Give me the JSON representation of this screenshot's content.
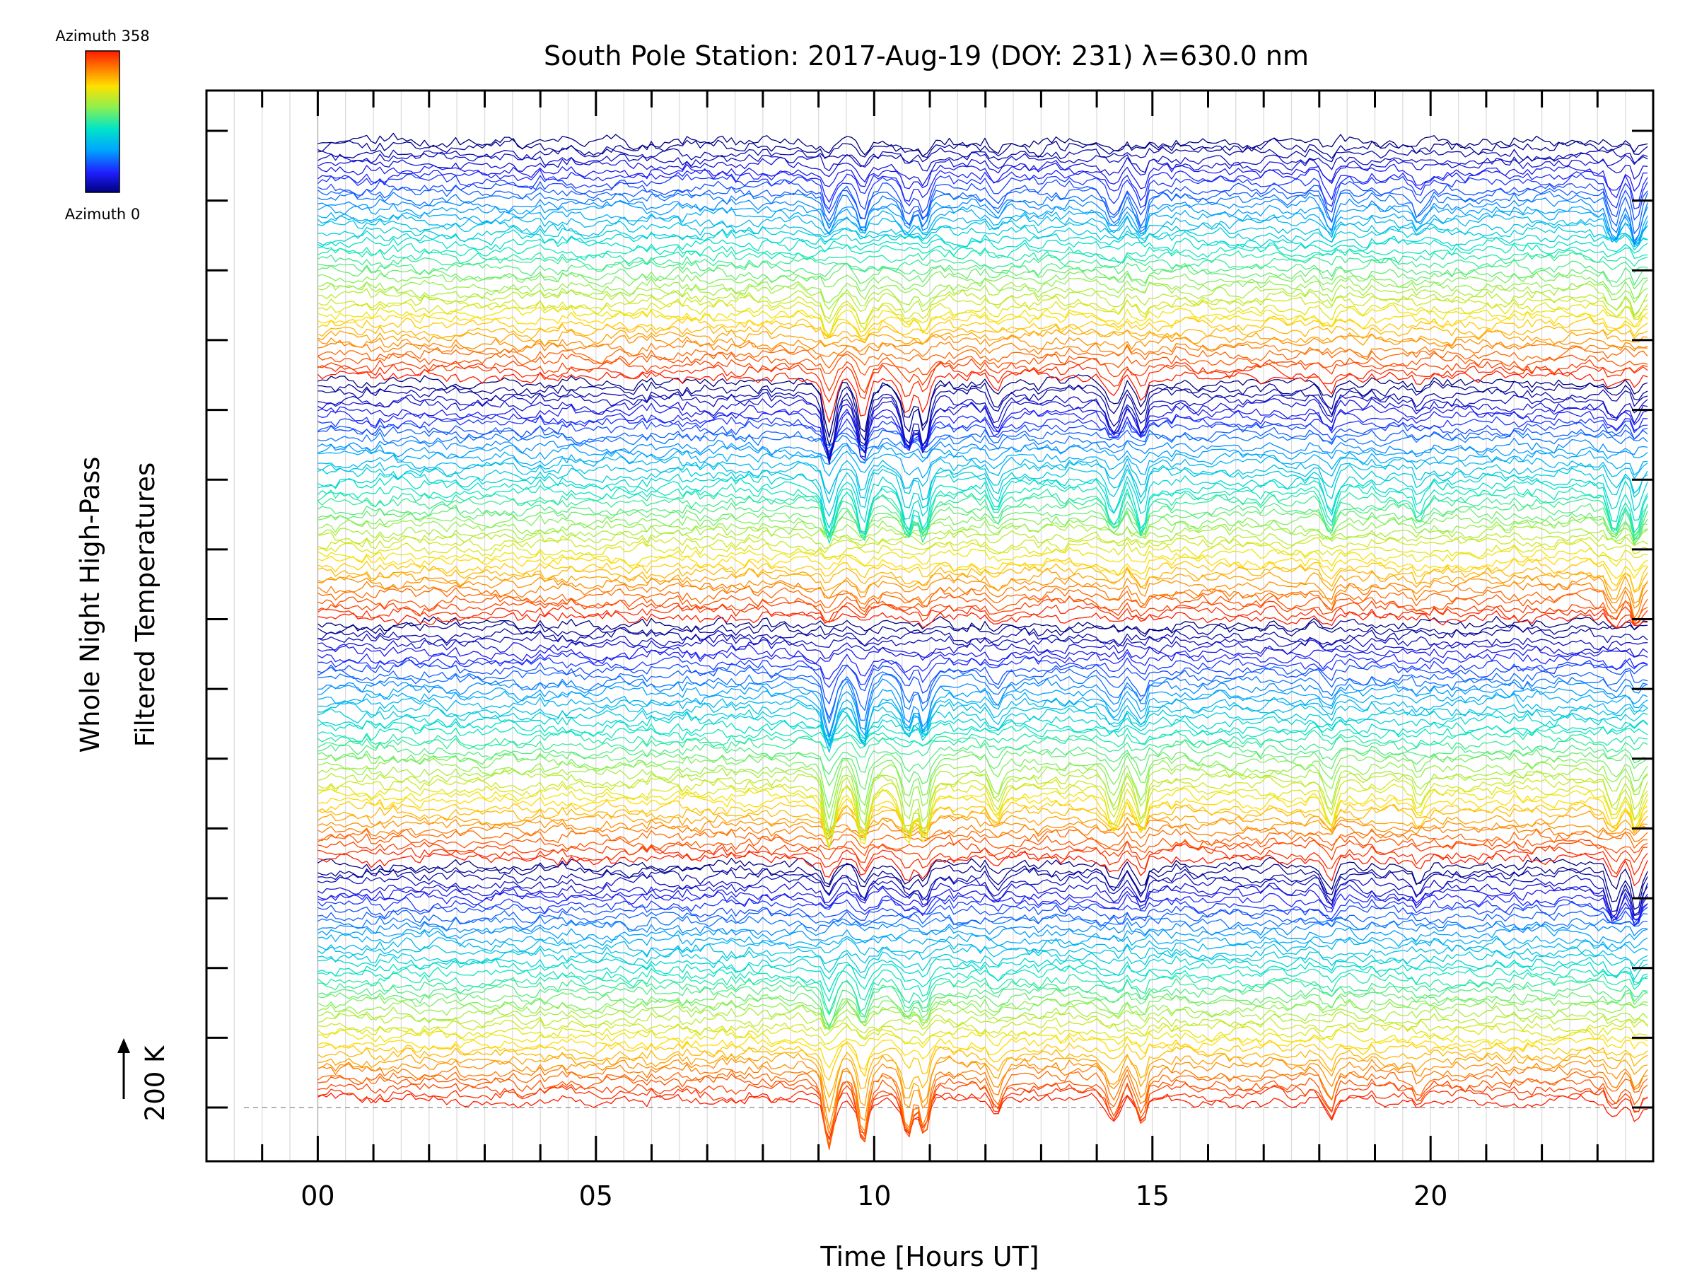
{
  "chart_data": {
    "type": "line",
    "title": "South Pole Station: 2017-Aug-19 (DOY: 231) λ=630.0 nm",
    "xlabel": "Time [Hours UT]",
    "ylabel": [
      "Whole Night High-Pass",
      "Filtered Temperatures"
    ],
    "xlim": [
      -2,
      24
    ],
    "x_tick_labels": [
      {
        "x": 0,
        "label": "00"
      },
      {
        "x": 5,
        "label": "05"
      },
      {
        "x": 10,
        "label": "10"
      },
      {
        "x": 15,
        "label": "15"
      },
      {
        "x": 20,
        "label": "20"
      }
    ],
    "x_data_range": [
      0,
      23.9
    ],
    "series_count": 168,
    "azimuth_range": [
      0,
      358
    ],
    "reference_scale_label": "200 K",
    "colorbar": {
      "top_label": "Azimuth 358",
      "bottom_label": "Azimuth 0",
      "palette": [
        "#000080",
        "#1f1fff",
        "#00a6ff",
        "#00e5c8",
        "#8cf050",
        "#ffe100",
        "#ff7a00",
        "#ff1a00"
      ]
    },
    "dip_times_hours": [
      9.2,
      9.8,
      10.6,
      10.9,
      12.2,
      14.3,
      14.8,
      18.2,
      19.8,
      23.3,
      23.7
    ],
    "grid": true
  }
}
